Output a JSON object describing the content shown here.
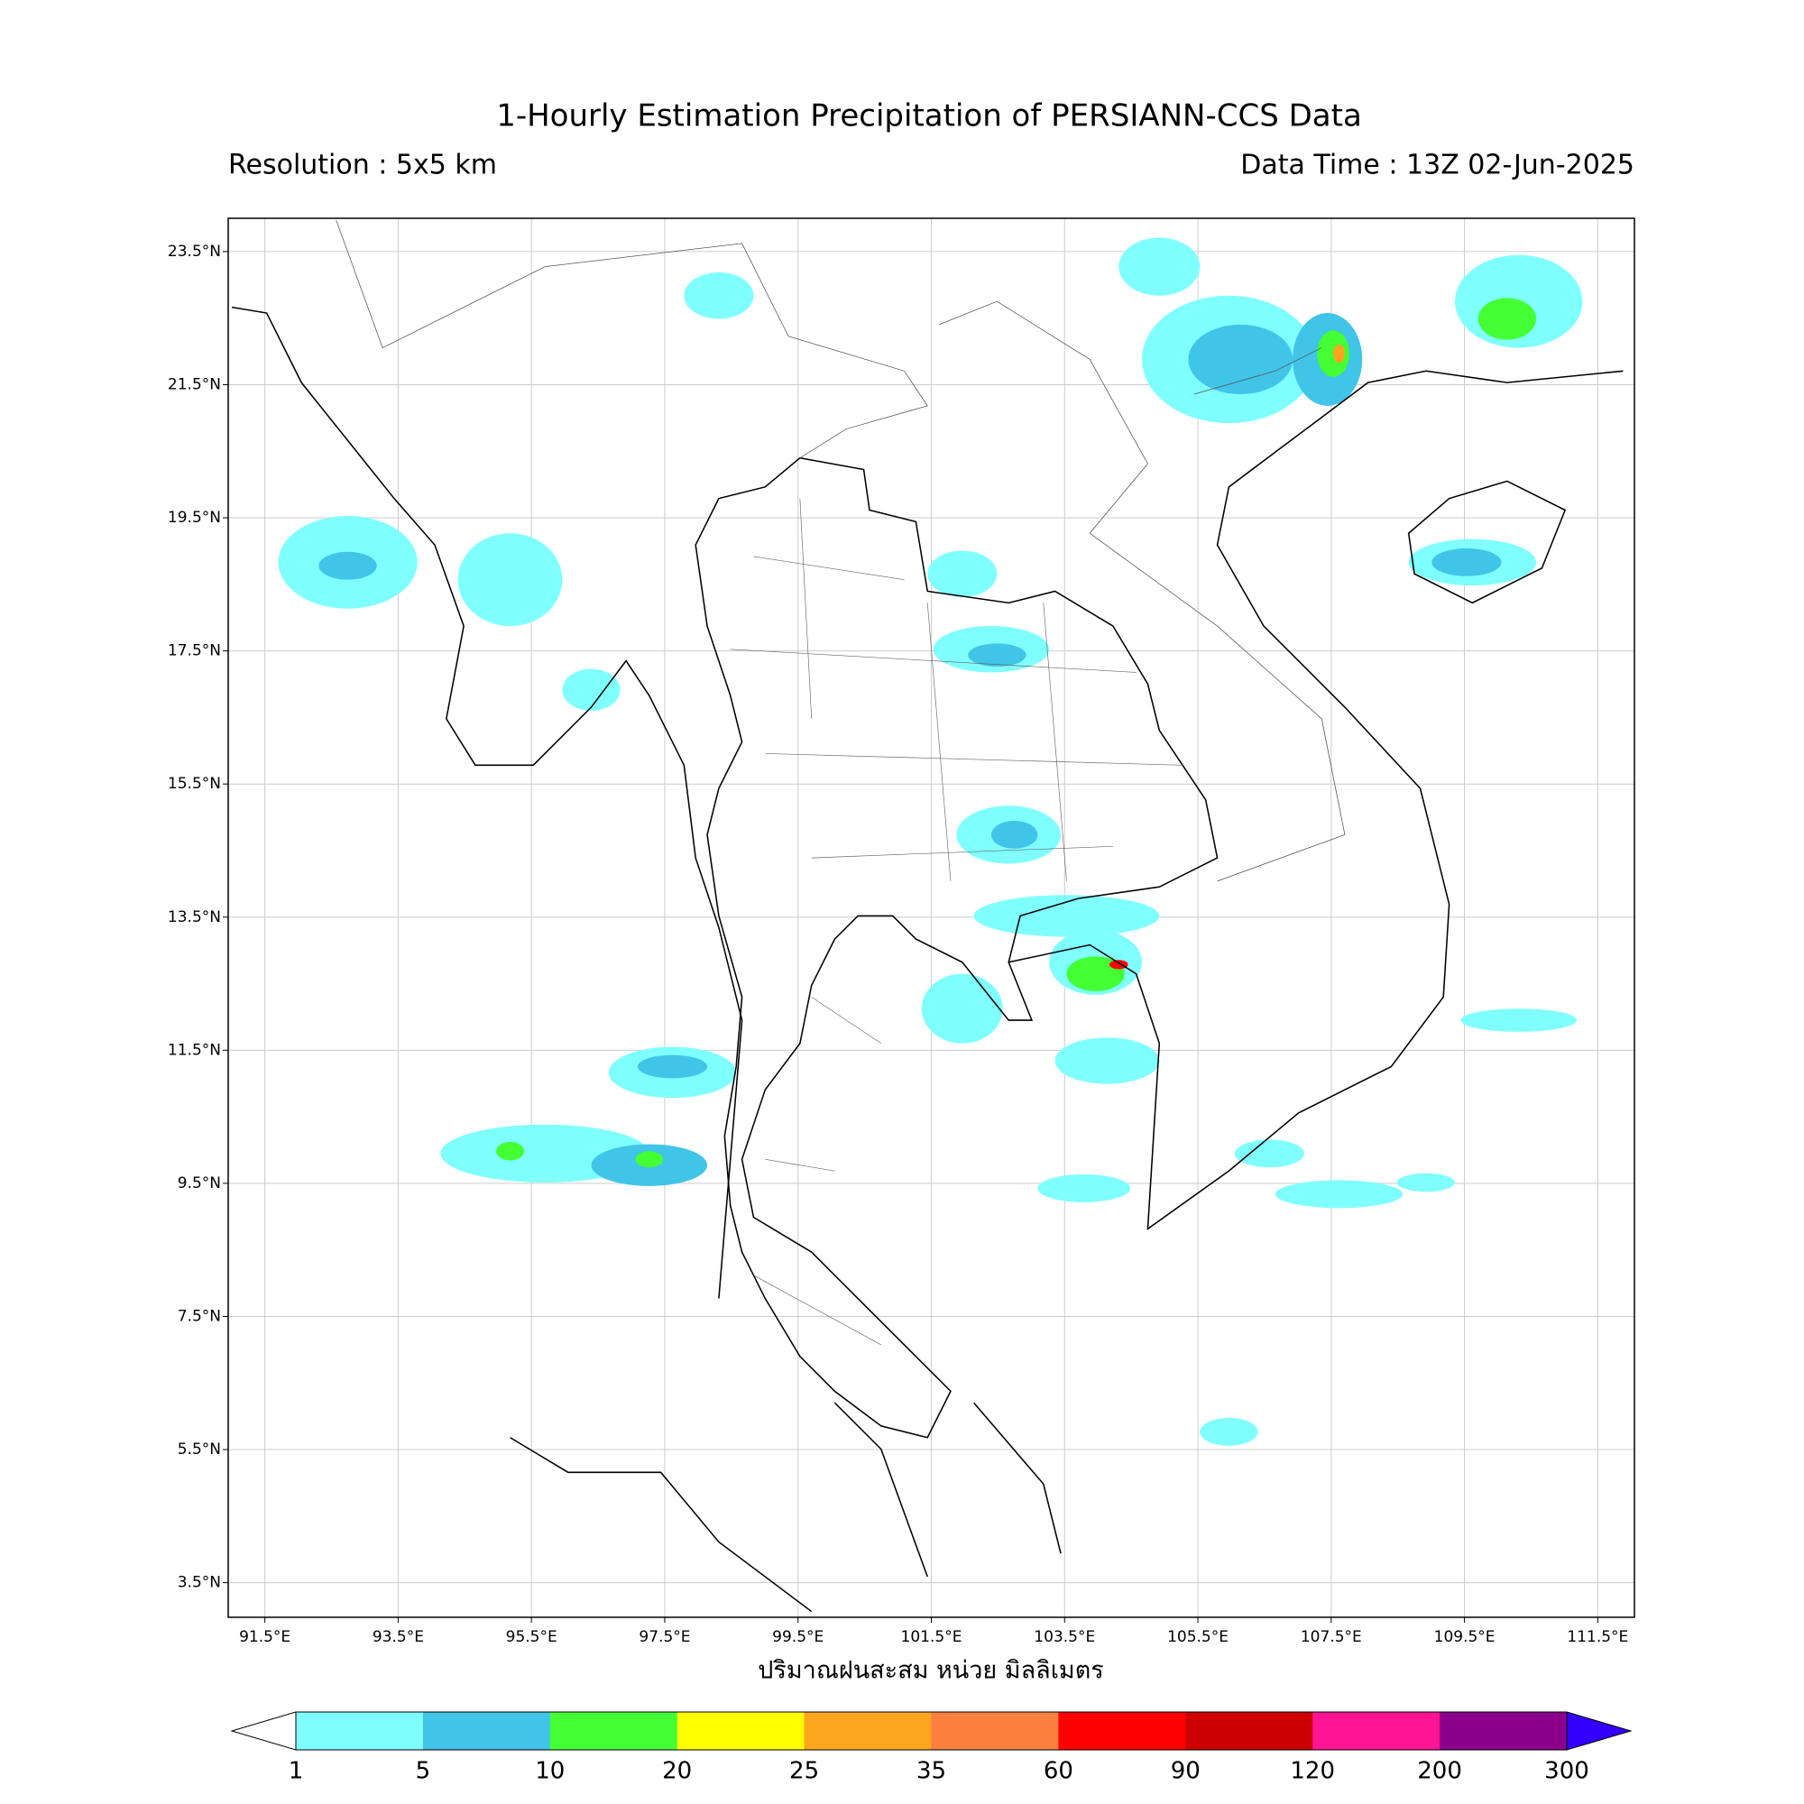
{
  "title": "1-Hourly Estimation Precipitation of PERSIANN-CCS Data",
  "resolution": "Resolution : 5x5 km",
  "data_time": "Data Time : 13Z 02-Jun-2025",
  "x_label": "ปริมาณฝนสะสม หน่วย มิลลิเมตร",
  "map": {
    "lon_range": [
      90.95,
      112.05
    ],
    "lat_range": [
      2.98,
      24.0
    ],
    "lon_ticks": [
      {
        "value": 91.5,
        "label": "91.5°E"
      },
      {
        "value": 93.5,
        "label": "93.5°E"
      },
      {
        "value": 95.5,
        "label": "95.5°E"
      },
      {
        "value": 97.5,
        "label": "97.5°E"
      },
      {
        "value": 99.5,
        "label": "99.5°E"
      },
      {
        "value": 101.5,
        "label": "101.5°E"
      },
      {
        "value": 103.5,
        "label": "103.5°E"
      },
      {
        "value": 105.5,
        "label": "105.5°E"
      },
      {
        "value": 107.5,
        "label": "107.5°E"
      },
      {
        "value": 109.5,
        "label": "109.5°E"
      },
      {
        "value": 111.5,
        "label": "111.5°E"
      }
    ],
    "lat_ticks": [
      {
        "value": 23.5,
        "label": "23.5°N"
      },
      {
        "value": 21.5,
        "label": "21.5°N"
      },
      {
        "value": 19.5,
        "label": "19.5°N"
      },
      {
        "value": 17.5,
        "label": "17.5°N"
      },
      {
        "value": 15.5,
        "label": "15.5°N"
      },
      {
        "value": 13.5,
        "label": "13.5°N"
      },
      {
        "value": 11.5,
        "label": "11.5°N"
      },
      {
        "value": 9.5,
        "label": "9.5°N"
      },
      {
        "value": 7.5,
        "label": "7.5°N"
      },
      {
        "value": 5.5,
        "label": "5.5°N"
      },
      {
        "value": 3.5,
        "label": "3.5°N"
      }
    ]
  },
  "colorbar": {
    "bounds": [
      1,
      5,
      10,
      20,
      25,
      35,
      60,
      90,
      120,
      200,
      300
    ],
    "colors": [
      "#80ffff",
      "#40c4e8",
      "#44ff33",
      "#ffff00",
      "#ffa520",
      "#ff7f3f",
      "#ff0000",
      "#cc0000",
      "#ff1493",
      "#8b008b"
    ],
    "under_color": "#ffffff",
    "over_color": "#3300ff"
  }
}
